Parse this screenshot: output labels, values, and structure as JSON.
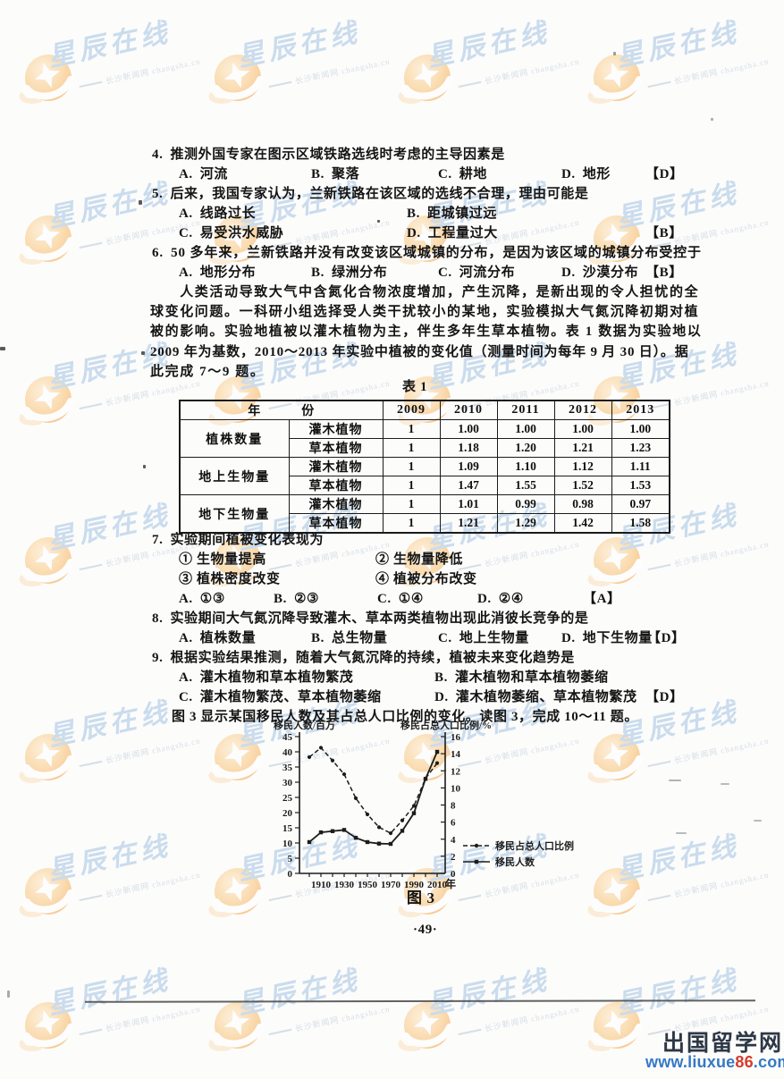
{
  "watermark": {
    "brand": "星辰在线",
    "subtext": "长沙新闻网 changsha.cn",
    "brand_color": "#9dbfe2",
    "logo_color": "#f59b33"
  },
  "questions": {
    "q4": {
      "num": "4.",
      "stem": "推测外国专家在图示区域铁路选线时考虑的主导因素是",
      "options": [
        {
          "label": "A.",
          "text": "河流"
        },
        {
          "label": "B.",
          "text": "聚落"
        },
        {
          "label": "C.",
          "text": "耕地"
        },
        {
          "label": "D.",
          "text": "地形"
        }
      ],
      "answer": "【D】"
    },
    "q5": {
      "num": "5.",
      "stem": "后来，我国专家认为，兰新铁路在该区域的选线不合理，理由可能是",
      "options": [
        {
          "label": "A.",
          "text": "线路过长"
        },
        {
          "label": "B.",
          "text": "距城镇过远"
        },
        {
          "label": "C.",
          "text": "易受洪水威胁"
        },
        {
          "label": "D.",
          "text": "工程量过大"
        }
      ],
      "answer": "【B】"
    },
    "q6": {
      "num": "6.",
      "stem": "50 多年来，兰新铁路并没有改变该区域城镇的分布，是因为该区域的城镇分布受控于",
      "options": [
        {
          "label": "A.",
          "text": "地形分布"
        },
        {
          "label": "B.",
          "text": "绿洲分布"
        },
        {
          "label": "C.",
          "text": "河流分布"
        },
        {
          "label": "D.",
          "text": "沙漠分布"
        }
      ],
      "answer": "【B】"
    },
    "q7": {
      "num": "7.",
      "stem": "实验期间植被变化表现为",
      "items": [
        "① 生物量提高",
        "② 生物量降低",
        "③ 植株密度改变",
        "④ 植被分布改变"
      ],
      "options": [
        {
          "label": "A.",
          "text": "①③"
        },
        {
          "label": "B.",
          "text": "②③"
        },
        {
          "label": "C.",
          "text": "①④"
        },
        {
          "label": "D.",
          "text": "②④"
        }
      ],
      "answer": "【A】"
    },
    "q8": {
      "num": "8.",
      "stem": "实验期间大气氮沉降导致灌木、草本两类植物出现此消彼长竞争的是",
      "options": [
        {
          "label": "A.",
          "text": "植株数量"
        },
        {
          "label": "B.",
          "text": "总生物量"
        },
        {
          "label": "C.",
          "text": "地上生物量"
        },
        {
          "label": "D.",
          "text": "地下生物量"
        }
      ],
      "answer": "【D】"
    },
    "q9": {
      "num": "9.",
      "stem": "根据实验结果推测，随着大气氮沉降的持续，植被未来变化趋势是",
      "options": [
        {
          "label": "A.",
          "text": "灌木植物和草本植物繁茂"
        },
        {
          "label": "B.",
          "text": "灌木植物和草本植物萎缩"
        },
        {
          "label": "C.",
          "text": "灌木植物繁茂、草本植物萎缩"
        },
        {
          "label": "D.",
          "text": "灌木植物萎缩、草本植物繁茂"
        }
      ],
      "answer": "【D】"
    }
  },
  "passage": {
    "lines": [
      "　　人类活动导致大气中含氮化合物浓度增加，产生沉降，是新出现的令人担忧的全",
      "球变化问题。一科研小组选择受人类干扰较小的某地，实验模拟大气氮沉降初期对植",
      "被的影响。实验地植被以灌木植物为主，伴生多年生草本植物。表 1 数据为实验地以",
      "2009 年为基数，2010～2013 年实验中植被的变化值（测量时间为每年 9 月 30 日）。据",
      "此完成 7～9 题。"
    ]
  },
  "table1": {
    "caption": "表 1",
    "year_header": "年　　　份",
    "years": [
      "2009",
      "2010",
      "2011",
      "2012",
      "2013"
    ],
    "groups": [
      {
        "label": "植株数量",
        "rows": [
          {
            "label": "灌木植物",
            "values": [
              "1",
              "1.00",
              "1.00",
              "1.00",
              "1.00"
            ]
          },
          {
            "label": "草本植物",
            "values": [
              "1",
              "1.18",
              "1.20",
              "1.21",
              "1.23"
            ]
          }
        ]
      },
      {
        "label": "地上生物量",
        "rows": [
          {
            "label": "灌木植物",
            "values": [
              "1",
              "1.09",
              "1.10",
              "1.12",
              "1.11"
            ]
          },
          {
            "label": "草本植物",
            "values": [
              "1",
              "1.47",
              "1.55",
              "1.52",
              "1.53"
            ]
          }
        ]
      },
      {
        "label": "地下生物量",
        "rows": [
          {
            "label": "灌木植物",
            "values": [
              "1",
              "1.01",
              "0.99",
              "0.98",
              "0.97"
            ]
          },
          {
            "label": "草本植物",
            "values": [
              "1",
              "1.21",
              "1.29",
              "1.42",
              "1.58"
            ]
          }
        ]
      }
    ]
  },
  "figure_intro": "图 3 显示某国移民人数及其占总人口比例的变化。读图 3，完成 10～11 题。",
  "figure_caption": "图 3",
  "chart_data": {
    "type": "line",
    "figure_label": "图 3",
    "x": [
      1900,
      1910,
      1920,
      1930,
      1940,
      1950,
      1960,
      1970,
      1980,
      1990,
      2000,
      2010
    ],
    "x_tick_labels": [
      "1910",
      "1930",
      "1950",
      "1970",
      "1990",
      "2010"
    ],
    "x_unit": "年",
    "left_axis": {
      "label": "移民人数/百万",
      "range": [
        0,
        45
      ],
      "tick_step": 5
    },
    "right_axis": {
      "label": "移民占总人口比例/%",
      "range": [
        0,
        16
      ],
      "tick_step": 2
    },
    "grid": false,
    "legend_position": "right-middle",
    "series": [
      {
        "name": "移民占总人口比例",
        "axis": "right",
        "line_style": "dashed",
        "marker": "dot",
        "values": [
          13.6,
          14.7,
          13.2,
          11.6,
          8.8,
          6.9,
          5.4,
          4.7,
          6.2,
          7.9,
          11.1,
          12.9
        ]
      },
      {
        "name": "移民人数",
        "axis": "left",
        "line_style": "solid",
        "marker": "square",
        "values": [
          10.3,
          13.5,
          13.9,
          14.3,
          11.7,
          10.3,
          9.8,
          9.7,
          14.0,
          19.8,
          31.1,
          40.0
        ]
      }
    ]
  },
  "page_number": "·49·",
  "footer": {
    "site_name": "出国留学网",
    "url_prefix": "www.liuxue",
    "url_highlight": "86",
    "url_suffix": ".com"
  }
}
